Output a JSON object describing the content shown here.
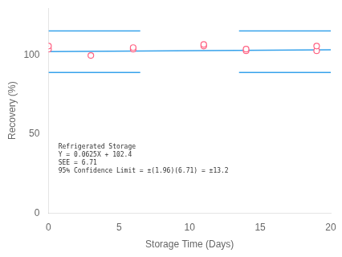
{
  "chart_data": {
    "type": "scatter",
    "xlabel": "Storage Time (Days)",
    "ylabel": "Recovery (%)",
    "series": [
      {
        "type": "scatter",
        "marker": "circle",
        "x": [
          0,
          0,
          3,
          6,
          6,
          11,
          11,
          14,
          14,
          19,
          19
        ],
        "values": [
          104,
          106,
          100,
          104,
          105,
          106,
          107,
          103,
          104,
          103,
          106
        ]
      },
      {
        "type": "line",
        "marker": "none",
        "x": [
          0,
          20
        ],
        "values": [
          102.4,
          103.65
        ]
      },
      {
        "type": "line",
        "marker": "none",
        "x": [
          0,
          6.5
        ],
        "values": [
          115.6,
          115.6
        ]
      },
      {
        "type": "line",
        "marker": "none",
        "x": [
          13.5,
          20
        ],
        "values": [
          115.6,
          115.6
        ]
      },
      {
        "type": "line",
        "marker": "none",
        "x": [
          0,
          6.5
        ],
        "values": [
          89.2,
          89.2
        ]
      },
      {
        "type": "line",
        "marker": "none",
        "x": [
          13.5,
          20
        ],
        "values": [
          89.2,
          89.2
        ]
      }
    ],
    "xlim": [
      0,
      20
    ],
    "ylim": [
      0,
      130
    ],
    "xticks": [
      0,
      5,
      10,
      15,
      20
    ],
    "yticks": [
      0,
      50,
      100
    ],
    "grid": false,
    "annotations": [
      {
        "text": [
          "Refrigerated Storage",
          "Y = 0.0625X + 102.4",
          "SEE = 6.71",
          "95% Confidence Limit = ±(1.96)(6.71) = ±13.2"
        ],
        "x": 0.7,
        "y": 44
      }
    ]
  }
}
